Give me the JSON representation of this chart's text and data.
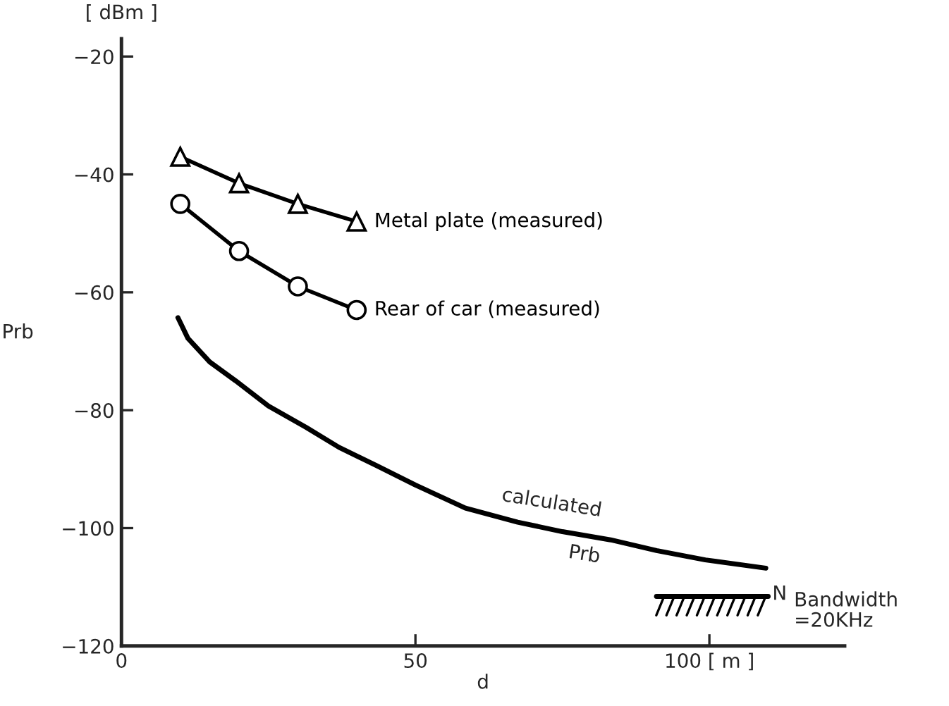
{
  "chart_data": {
    "type": "line",
    "xlabel": "d",
    "ylabel": "Prb",
    "xlim": [
      0,
      123
    ],
    "ylim": [
      -120,
      -17
    ],
    "xticks": [
      0,
      50,
      {
        "value": 100,
        "label": "100 [ m ]"
      }
    ],
    "yticks": [
      {
        "value": -20,
        "label": "−20"
      },
      {
        "value": -40,
        "label": "−40"
      },
      {
        "value": -60,
        "label": "−60"
      },
      {
        "value": -80,
        "label": "−80"
      },
      {
        "value": -100,
        "label": "−100"
      },
      {
        "value": -120,
        "label": "−120"
      }
    ],
    "grid": false,
    "legend": false,
    "series": [
      {
        "name": "Metal plate (measured)",
        "color": "#000000",
        "marker": "triangle",
        "x": [
          10,
          20,
          30,
          40
        ],
        "values": [
          -37,
          -41.5,
          -45,
          -48
        ]
      },
      {
        "name": "Rear of car (measured)",
        "color": "#000000",
        "marker": "circle",
        "x": [
          10,
          20,
          30,
          40
        ],
        "values": [
          -45,
          -53,
          -59,
          -63
        ]
      },
      {
        "color": "#000000",
        "marker": "none",
        "x": [
          9.6,
          11.3,
          15,
          19.4,
          25,
          31.4,
          37,
          43.4,
          50,
          58.5,
          67.4,
          75,
          83.2,
          91,
          99.3,
          109.6
        ],
        "values": [
          -64.3,
          -67.8,
          -71.8,
          -75,
          -79.3,
          -82.9,
          -86.3,
          -89.4,
          -92.7,
          -96.6,
          -99,
          -100.6,
          -102,
          -103.8,
          -105.4,
          -106.8
        ]
      },
      {
        "color": "#000000",
        "marker": "none",
        "x": [
          91,
          110
        ],
        "values": [
          -111.6,
          -111.6
        ]
      }
    ],
    "annotations": [
      "[ dBm ]",
      "calculated",
      "Prb",
      "N",
      "Bandwidth\n=20KHz"
    ]
  }
}
